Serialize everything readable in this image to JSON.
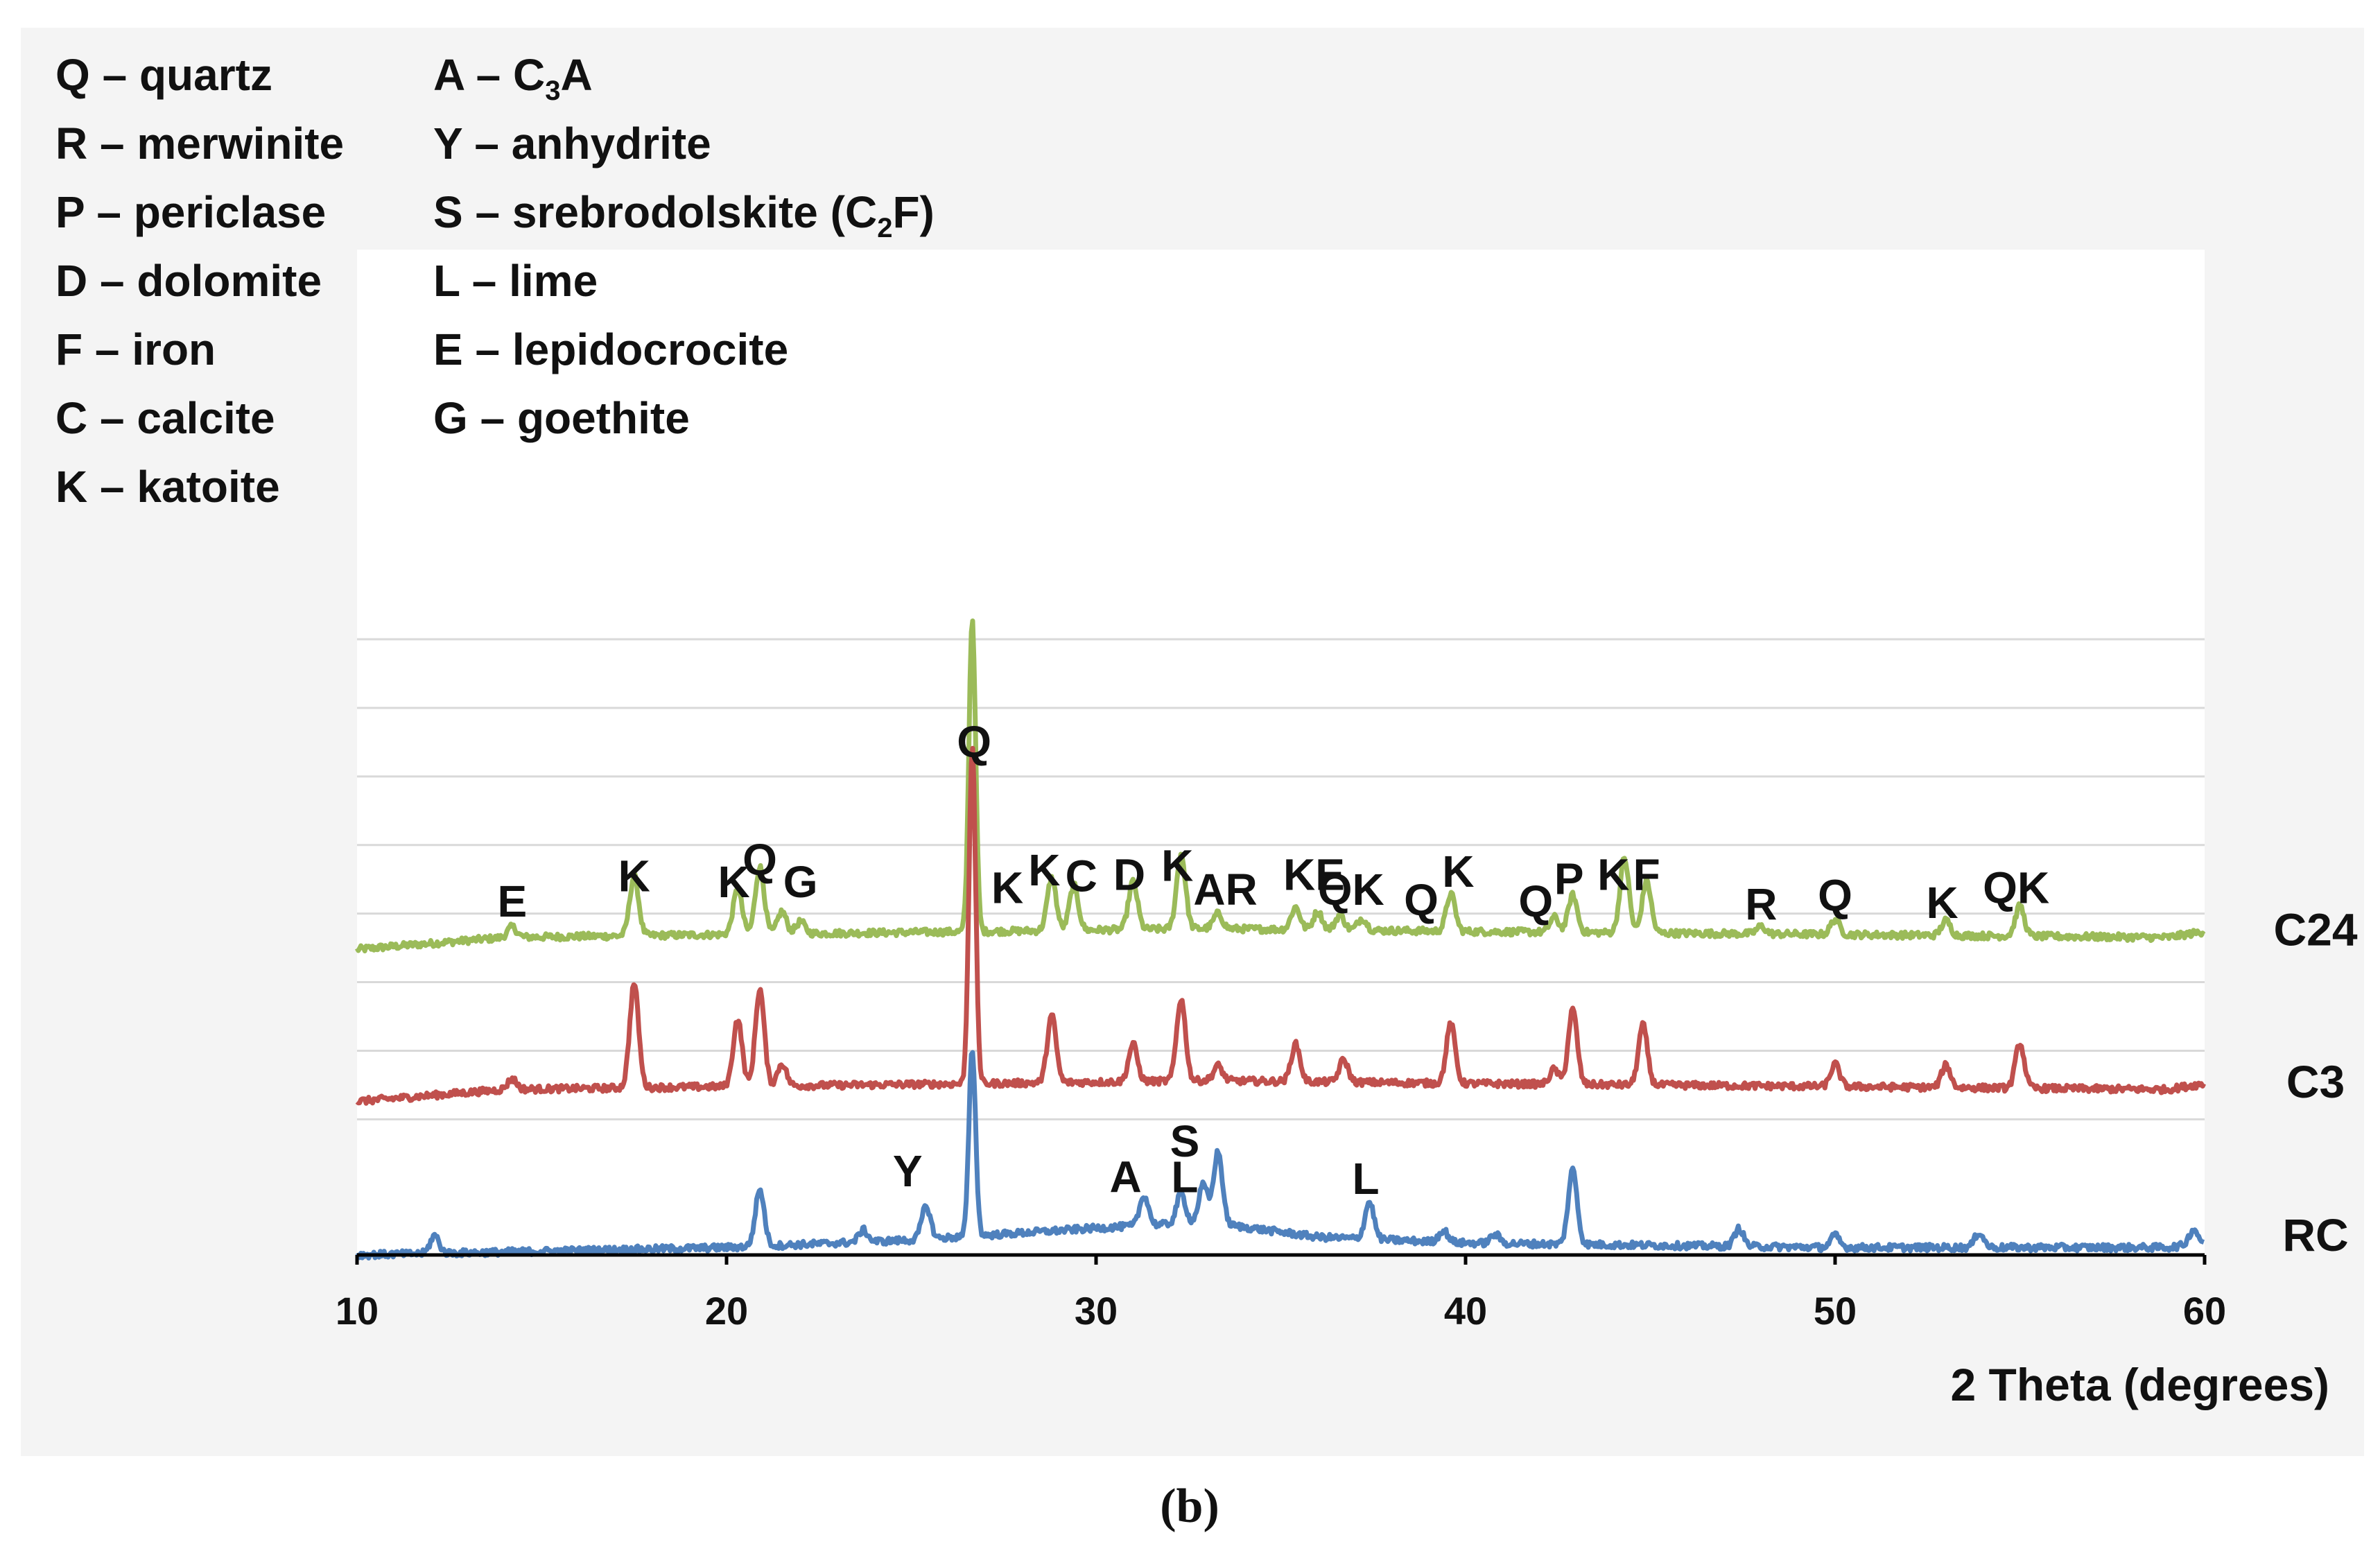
{
  "chart_data": {
    "type": "line",
    "title": "",
    "xlabel": "2 Theta (degrees)",
    "ylabel": "",
    "xlim": [
      10,
      60
    ],
    "xticks": [
      10,
      20,
      30,
      40,
      50,
      60
    ],
    "grid": true,
    "caption": "(b)",
    "legend": [
      {
        "code": "Q",
        "name": "quartz"
      },
      {
        "code": "R",
        "name": "merwinite"
      },
      {
        "code": "P",
        "name": "periclase"
      },
      {
        "code": "D",
        "name": "dolomite"
      },
      {
        "code": "F",
        "name": "iron"
      },
      {
        "code": "C",
        "name": "calcite"
      },
      {
        "code": "K",
        "name": "katoite"
      },
      {
        "code": "A",
        "name": "C3A",
        "name_main": "C",
        "name_sub": "3",
        "name_tail": "A"
      },
      {
        "code": "Y",
        "name": "anhydrite"
      },
      {
        "code": "S",
        "name": "srebrodolskite (C2F)",
        "name_main": "srebrodolskite (C",
        "name_sub": "2",
        "name_tail": "F)"
      },
      {
        "code": "L",
        "name": "lime"
      },
      {
        "code": "E",
        "name": "lepidocrocite"
      },
      {
        "code": "G",
        "name": "goethite"
      }
    ],
    "series": [
      {
        "name": "C24",
        "color": "#9bbb59",
        "offset": 2.05,
        "baseline": [
          [
            10,
            0.0
          ],
          [
            14,
            0.08
          ],
          [
            20,
            0.1
          ],
          [
            27,
            0.12
          ],
          [
            33,
            0.14
          ],
          [
            40,
            0.12
          ],
          [
            50,
            0.1
          ],
          [
            59,
            0.08
          ],
          [
            60,
            0.12
          ]
        ],
        "peaks": [
          [
            14.2,
            0.07
          ],
          [
            17.5,
            0.4
          ],
          [
            20.3,
            0.3
          ],
          [
            20.9,
            0.45
          ],
          [
            21.5,
            0.15
          ],
          [
            22.0,
            0.08
          ],
          [
            26.65,
            2.1
          ],
          [
            28.8,
            0.35
          ],
          [
            29.4,
            0.3
          ],
          [
            31.0,
            0.32
          ],
          [
            32.3,
            0.5
          ],
          [
            33.3,
            0.1
          ],
          [
            35.4,
            0.15
          ],
          [
            36.0,
            0.12
          ],
          [
            36.6,
            0.1
          ],
          [
            37.2,
            0.08
          ],
          [
            39.6,
            0.25
          ],
          [
            42.4,
            0.1
          ],
          [
            42.9,
            0.25
          ],
          [
            44.3,
            0.5
          ],
          [
            44.9,
            0.35
          ],
          [
            48.0,
            0.05
          ],
          [
            50.0,
            0.1
          ],
          [
            53.0,
            0.1
          ],
          [
            55.0,
            0.2
          ]
        ]
      },
      {
        "name": "C3",
        "color": "#c0504d",
        "offset": 1.03,
        "baseline": [
          [
            10,
            0.0
          ],
          [
            14,
            0.08
          ],
          [
            20,
            0.1
          ],
          [
            27,
            0.12
          ],
          [
            33,
            0.14
          ],
          [
            40,
            0.12
          ],
          [
            50,
            0.1
          ],
          [
            59,
            0.08
          ],
          [
            60,
            0.12
          ]
        ],
        "peaks": [
          [
            14.2,
            0.07
          ],
          [
            17.5,
            0.7
          ],
          [
            20.3,
            0.45
          ],
          [
            20.9,
            0.65
          ],
          [
            21.5,
            0.15
          ],
          [
            26.65,
            2.25
          ],
          [
            28.8,
            0.45
          ],
          [
            31.0,
            0.25
          ],
          [
            32.3,
            0.55
          ],
          [
            33.3,
            0.1
          ],
          [
            35.4,
            0.25
          ],
          [
            36.7,
            0.15
          ],
          [
            39.6,
            0.4
          ],
          [
            42.4,
            0.1
          ],
          [
            42.9,
            0.5
          ],
          [
            44.8,
            0.4
          ],
          [
            50.0,
            0.15
          ],
          [
            53.0,
            0.15
          ],
          [
            55.0,
            0.3
          ]
        ]
      },
      {
        "name": "RC",
        "color": "#4f81bd",
        "offset": 0.0,
        "baseline": [
          [
            10,
            0.0
          ],
          [
            20,
            0.05
          ],
          [
            25,
            0.1
          ],
          [
            30,
            0.18
          ],
          [
            33,
            0.22
          ],
          [
            36,
            0.12
          ],
          [
            40,
            0.08
          ],
          [
            50,
            0.05
          ],
          [
            59,
            0.05
          ],
          [
            60,
            0.08
          ]
        ],
        "peaks": [
          [
            12.1,
            0.12
          ],
          [
            20.9,
            0.38
          ],
          [
            23.7,
            0.08
          ],
          [
            25.4,
            0.22
          ],
          [
            26.65,
            1.25
          ],
          [
            31.3,
            0.2
          ],
          [
            32.3,
            0.2
          ],
          [
            32.9,
            0.25
          ],
          [
            33.3,
            0.48
          ],
          [
            37.4,
            0.25
          ],
          [
            39.4,
            0.08
          ],
          [
            40.8,
            0.06
          ],
          [
            42.9,
            0.5
          ],
          [
            47.4,
            0.12
          ],
          [
            50.0,
            0.08
          ],
          [
            53.9,
            0.1
          ],
          [
            59.7,
            0.1
          ]
        ]
      }
    ],
    "peak_labels": [
      {
        "text": "E",
        "x": 14.2,
        "y": 2.27
      },
      {
        "text": "K",
        "x": 17.5,
        "y": 2.44
      },
      {
        "text": "K",
        "x": 20.2,
        "y": 2.4
      },
      {
        "text": "Q",
        "x": 20.9,
        "y": 2.55
      },
      {
        "text": "G",
        "x": 22.0,
        "y": 2.4
      },
      {
        "text": "Q",
        "x": 26.7,
        "y": 3.34
      },
      {
        "text": "K",
        "x": 27.6,
        "y": 2.36
      },
      {
        "text": "K",
        "x": 28.6,
        "y": 2.48
      },
      {
        "text": "C",
        "x": 29.6,
        "y": 2.44
      },
      {
        "text": "D",
        "x": 30.9,
        "y": 2.45
      },
      {
        "text": "K",
        "x": 32.2,
        "y": 2.51
      },
      {
        "text": "AR",
        "x": 33.5,
        "y": 2.35
      },
      {
        "text": "KE",
        "x": 35.9,
        "y": 2.45
      },
      {
        "text": "QK",
        "x": 36.9,
        "y": 2.35
      },
      {
        "text": "Q",
        "x": 38.8,
        "y": 2.28
      },
      {
        "text": "K",
        "x": 39.8,
        "y": 2.47
      },
      {
        "text": "Q",
        "x": 41.9,
        "y": 2.27
      },
      {
        "text": "P",
        "x": 42.8,
        "y": 2.42
      },
      {
        "text": "K",
        "x": 44.0,
        "y": 2.45
      },
      {
        "text": "F",
        "x": 44.9,
        "y": 2.45
      },
      {
        "text": "R",
        "x": 48.0,
        "y": 2.25
      },
      {
        "text": "Q",
        "x": 50.0,
        "y": 2.31
      },
      {
        "text": "K",
        "x": 52.9,
        "y": 2.26
      },
      {
        "text": "QK",
        "x": 54.9,
        "y": 2.36
      },
      {
        "text": "S",
        "x": 32.4,
        "y": 0.66
      },
      {
        "text": "Y",
        "x": 24.9,
        "y": 0.46
      },
      {
        "text": "A",
        "x": 30.8,
        "y": 0.42
      },
      {
        "text": "L",
        "x": 32.4,
        "y": 0.42
      },
      {
        "text": "L",
        "x": 37.3,
        "y": 0.41
      }
    ]
  }
}
